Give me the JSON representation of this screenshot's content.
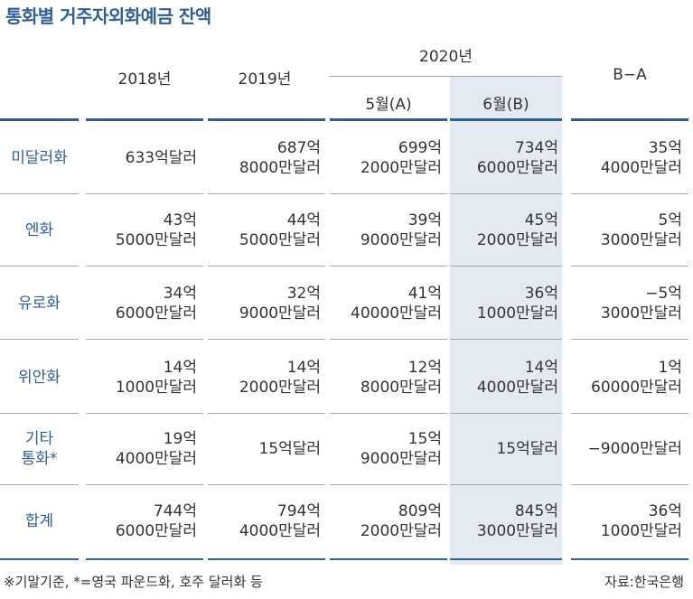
{
  "title": "통화별 거주자외화예금 잔액",
  "headers": {
    "y2018": "2018년",
    "y2019": "2019년",
    "y2020": "2020년",
    "may": "5월(A)",
    "june": "6월(B)",
    "diff": "B−A"
  },
  "rows": [
    {
      "label": [
        "미달러화"
      ],
      "cells": [
        [
          "633억달러"
        ],
        [
          "687억",
          "8000만달러"
        ],
        [
          "699억",
          "2000만달러"
        ],
        [
          "734억",
          "6000만달러"
        ],
        [
          "35억",
          "4000만달러"
        ]
      ]
    },
    {
      "label": [
        "엔화"
      ],
      "cells": [
        [
          "43억",
          "5000만달러"
        ],
        [
          "44억",
          "5000만달러"
        ],
        [
          "39억",
          "9000만달러"
        ],
        [
          "45억",
          "2000만달러"
        ],
        [
          "5억",
          "3000만달러"
        ]
      ]
    },
    {
      "label": [
        "유로화"
      ],
      "cells": [
        [
          "34억",
          "6000만달러"
        ],
        [
          "32억",
          "9000만달러"
        ],
        [
          "41억",
          "40000만달러"
        ],
        [
          "36억",
          "1000만달러"
        ],
        [
          "−5억",
          "3000만달러"
        ]
      ]
    },
    {
      "label": [
        "위안화"
      ],
      "cells": [
        [
          "14억",
          "1000만달러"
        ],
        [
          "14억",
          "2000만달러"
        ],
        [
          "12억",
          "8000만달러"
        ],
        [
          "14억",
          "4000만달러"
        ],
        [
          "1억",
          "60000만달러"
        ]
      ]
    },
    {
      "label": [
        "기타",
        "통화*"
      ],
      "cells": [
        [
          "19억",
          "4000만달러"
        ],
        [
          "15억달러"
        ],
        [
          "15억",
          "9000만달러"
        ],
        [
          "15억달러"
        ],
        [
          "−9000만달러"
        ]
      ]
    },
    {
      "label": [
        "합계"
      ],
      "cells": [
        [
          "744억",
          "6000만달러"
        ],
        [
          "794억",
          "4000만달러"
        ],
        [
          "809억",
          "2000만달러"
        ],
        [
          "845억",
          "3000만달러"
        ],
        [
          "36억",
          "1000만달러"
        ]
      ]
    }
  ],
  "footnote": "※기말기준, *=영국 파운드화, 호주 달러화 등",
  "source": "자료:한국은행",
  "colors": {
    "accent": "#2f5f96",
    "highlight_column": "#e4eaf1"
  }
}
